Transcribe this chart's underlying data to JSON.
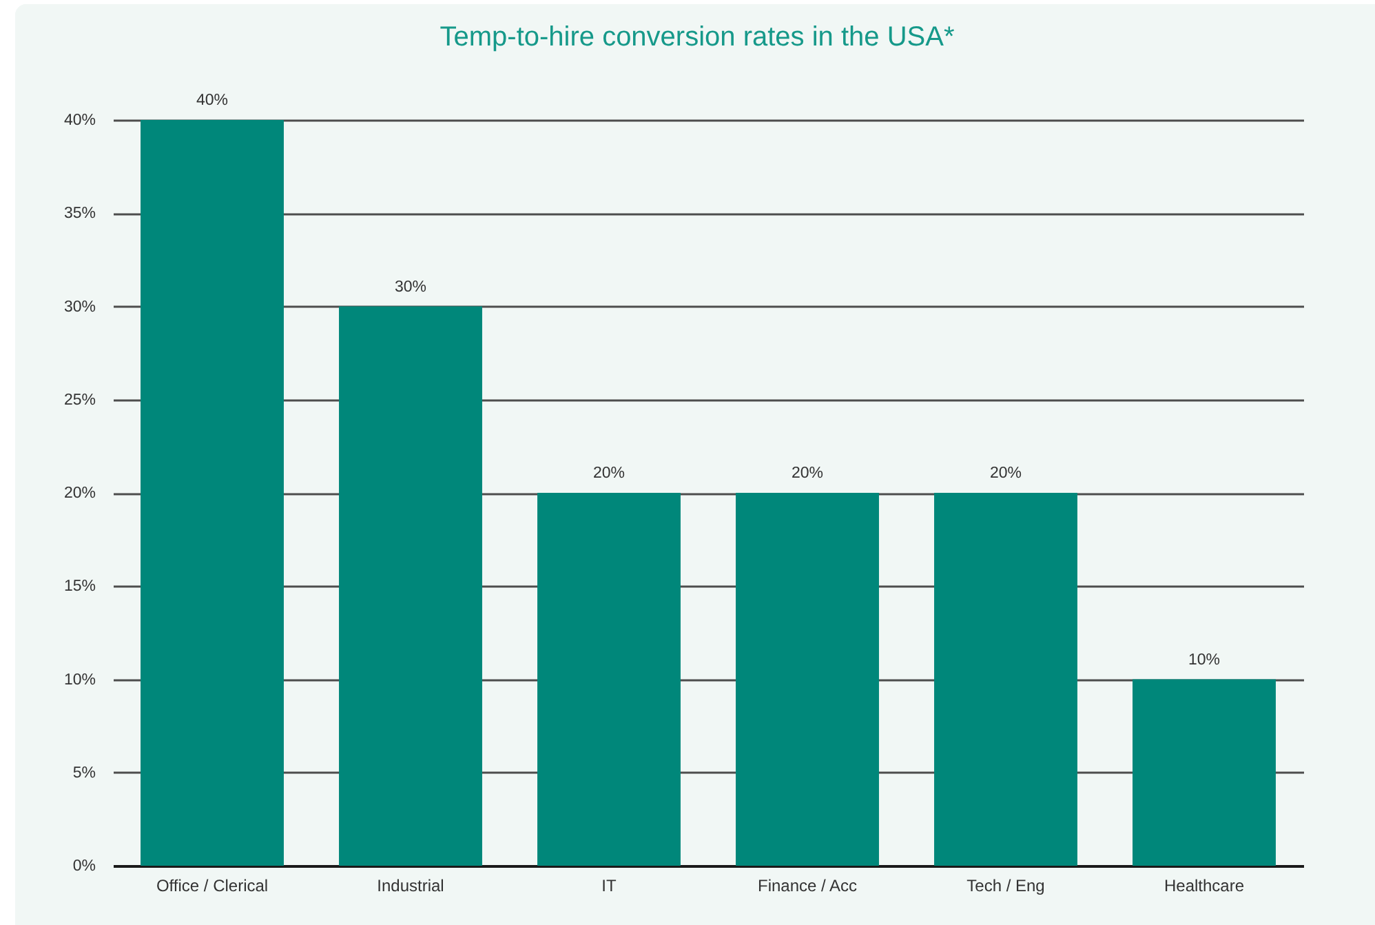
{
  "chart_data": {
    "type": "bar",
    "title": "Temp-to-hire conversion rates in the USA*",
    "categories": [
      "Office / Clerical",
      "Industrial",
      "IT",
      "Finance / Acc",
      "Tech / Eng",
      "Healthcare"
    ],
    "values": [
      40,
      30,
      20,
      20,
      20,
      10
    ],
    "color": "#00877a",
    "value_labels": [
      "40%",
      "30%",
      "20%",
      "20%",
      "20%",
      "10%"
    ],
    "ylim": [
      0,
      40
    ],
    "yticks": [
      {
        "value": 0,
        "label": "0%"
      },
      {
        "value": 5,
        "label": "5%"
      },
      {
        "value": 10,
        "label": "10%"
      },
      {
        "value": 15,
        "label": "15%"
      },
      {
        "value": 20,
        "label": "20%"
      },
      {
        "value": 25,
        "label": "25%"
      },
      {
        "value": 30,
        "label": "30%"
      },
      {
        "value": 35,
        "label": "35%"
      },
      {
        "value": 40,
        "label": "40%"
      }
    ],
    "grid": "y"
  }
}
